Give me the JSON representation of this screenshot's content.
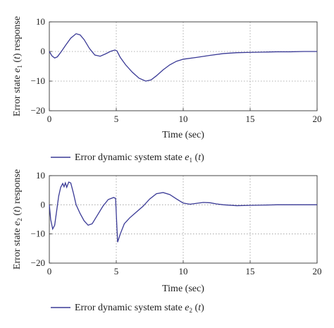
{
  "chart_data": [
    {
      "type": "line",
      "title": "",
      "xlabel": "Time (sec)",
      "ylabel": "Error state e1 (t) response",
      "xlim": [
        0,
        20
      ],
      "ylim": [
        -20,
        10
      ],
      "xticks": [
        0,
        5,
        10,
        15,
        20
      ],
      "yticks": [
        10,
        0,
        -10,
        -20
      ],
      "grid": true,
      "legend_position": "bottom",
      "series": [
        {
          "name": "Error dynamic system state e1 (t)",
          "color": "#3a3a96",
          "x": [
            0,
            0.2,
            0.4,
            0.6,
            0.9,
            1.2,
            1.6,
            2.0,
            2.3,
            2.6,
            3.0,
            3.4,
            3.8,
            4.2,
            4.6,
            4.9,
            5.05,
            5.3,
            5.7,
            6.2,
            6.7,
            7.2,
            7.6,
            8.0,
            8.5,
            9.0,
            9.5,
            10.0,
            11.0,
            12.0,
            13.0,
            14.0,
            15.0,
            16.0,
            17.0,
            18.0,
            19.0,
            20.0
          ],
          "y": [
            0,
            -1.5,
            -2.2,
            -1.8,
            0.0,
            2.0,
            4.5,
            6.0,
            5.6,
            4.0,
            1.0,
            -1.2,
            -1.6,
            -0.8,
            0.1,
            0.5,
            0.2,
            -2.0,
            -4.5,
            -7.0,
            -9.0,
            -10.0,
            -9.6,
            -8.2,
            -6.2,
            -4.5,
            -3.3,
            -2.6,
            -2.0,
            -1.3,
            -0.7,
            -0.4,
            -0.3,
            -0.2,
            -0.1,
            -0.1,
            0.0,
            0.0
          ]
        }
      ]
    },
    {
      "type": "line",
      "title": "",
      "xlabel": "Time (sec)",
      "ylabel": "Error state e2 (t) response",
      "xlim": [
        0,
        20
      ],
      "ylim": [
        -20,
        10
      ],
      "xticks": [
        0,
        5,
        10,
        15,
        20
      ],
      "yticks": [
        10,
        0,
        -10,
        -20
      ],
      "grid": true,
      "legend_position": "bottom",
      "series": [
        {
          "name": "Error dynamic system state e2 (t)",
          "color": "#3a3a96",
          "x": [
            0,
            0.1,
            0.25,
            0.4,
            0.55,
            0.7,
            0.85,
            1.0,
            1.1,
            1.2,
            1.3,
            1.45,
            1.6,
            1.8,
            2.0,
            2.3,
            2.6,
            2.9,
            3.2,
            3.6,
            4.0,
            4.4,
            4.8,
            4.95,
            5.02,
            5.1,
            5.3,
            5.6,
            6.0,
            6.5,
            7.0,
            7.5,
            8.0,
            8.5,
            9.0,
            9.5,
            10.0,
            10.5,
            11.0,
            11.5,
            12.0,
            12.5,
            13.0,
            14.0,
            15.0,
            16.0,
            17.0,
            18.0,
            19.0,
            20.0
          ],
          "y": [
            0,
            -5.0,
            -8.3,
            -7.0,
            -2.0,
            3.0,
            6.0,
            7.3,
            6.2,
            7.5,
            6.0,
            7.8,
            7.5,
            4.0,
            0.0,
            -3.0,
            -5.5,
            -7.0,
            -6.5,
            -3.5,
            -0.5,
            1.8,
            2.5,
            2.2,
            -5.0,
            -12.8,
            -10.0,
            -6.5,
            -4.5,
            -2.5,
            -0.5,
            2.0,
            3.8,
            4.2,
            3.5,
            2.0,
            0.6,
            0.2,
            0.5,
            0.8,
            0.7,
            0.3,
            0.0,
            -0.3,
            -0.2,
            -0.1,
            0.0,
            0.0,
            0.0,
            0.0
          ]
        }
      ]
    }
  ]
}
